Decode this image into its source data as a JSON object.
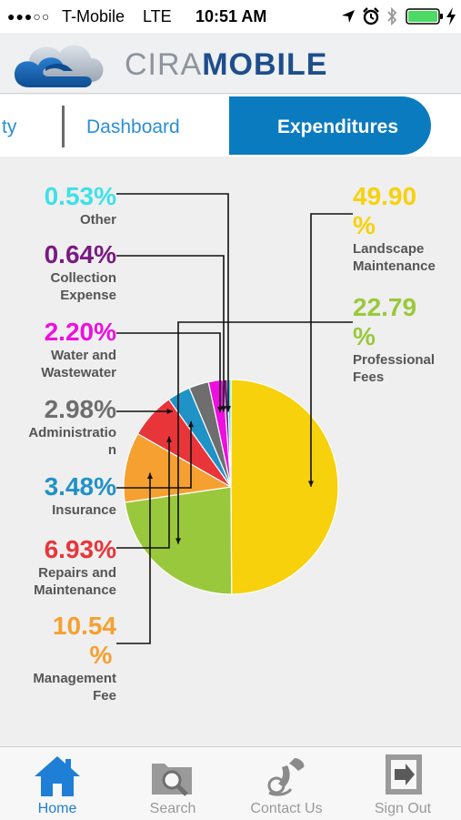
{
  "status_bar": {
    "signal": "●●●○○",
    "carrier": "T-Mobile",
    "network": "LTE",
    "time": "10:51 AM"
  },
  "header": {
    "brand_cira": "CIRA",
    "brand_mobile": "MOBILE"
  },
  "tabs": [
    {
      "label": "ty"
    },
    {
      "label": "Dashboard"
    },
    {
      "label": "Expenditures",
      "active": true
    }
  ],
  "chart_data": {
    "type": "pie",
    "slices": [
      {
        "label_lines": [
          "Landscape",
          "Maintenance"
        ],
        "value_lines": [
          "49.90",
          "%"
        ],
        "value": 49.9,
        "color": "#f7d10c"
      },
      {
        "label_lines": [
          "Professional",
          "Fees"
        ],
        "value_lines": [
          "22.79",
          "%"
        ],
        "value": 22.79,
        "color": "#9ac83c"
      },
      {
        "label_lines": [
          "Management",
          "Fee"
        ],
        "value_lines": [
          "10.54",
          "%"
        ],
        "value": 10.54,
        "color": "#f5a030"
      },
      {
        "label_lines": [
          "Repairs and",
          "Maintenance"
        ],
        "value_lines": [
          "6.93%"
        ],
        "value": 6.93,
        "color": "#e8353a"
      },
      {
        "label_lines": [
          "Insurance"
        ],
        "value_lines": [
          "3.48%"
        ],
        "value": 3.48,
        "color": "#1f92c6"
      },
      {
        "label_lines": [
          "Administratio",
          "n"
        ],
        "value_lines": [
          "2.98%"
        ],
        "value": 2.98,
        "color": "#6e6e6e"
      },
      {
        "label_lines": [
          "Water and",
          "Wastewater"
        ],
        "value_lines": [
          "2.20%"
        ],
        "value": 2.2,
        "color": "#ee0ee0"
      },
      {
        "label_lines": [
          "Collection",
          "Expense"
        ],
        "value_lines": [
          "0.64%"
        ],
        "value": 0.64,
        "color": "#7a1a82"
      },
      {
        "label_lines": [
          "Other"
        ],
        "value_lines": [
          "0.53%"
        ],
        "value": 0.53,
        "color": "#3fe0e8"
      }
    ]
  },
  "tab_bar": {
    "items": [
      {
        "label": "Home",
        "icon": "home-icon",
        "active": true
      },
      {
        "label": "Search",
        "icon": "search-folder-icon"
      },
      {
        "label": "Contact Us",
        "icon": "phone-icon"
      },
      {
        "label": "Sign Out",
        "icon": "sign-out-icon"
      }
    ]
  },
  "colors": {
    "accent": "#0b7bbf",
    "tab_active_text": "#ffffff",
    "tab_inactive_text": "#2b8fd4",
    "tabbar_active": "#1f7fd6"
  }
}
